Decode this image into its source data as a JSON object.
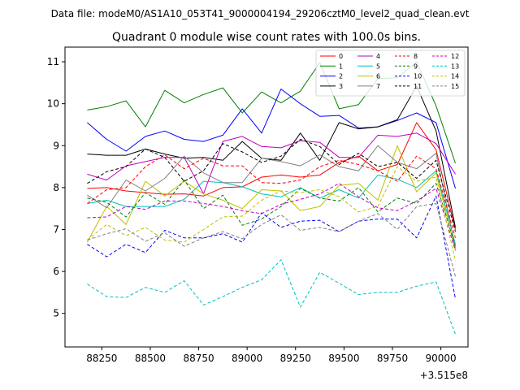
{
  "figure": {
    "suptitle": "Data file: modeM0/AS1A10_053T41_9000004194_29206cztM0_level2_quad_clean.evt",
    "title": "Quadrant 0 module wise count rates with 100.0s bins.",
    "offset_text": "+3.515e8"
  },
  "chart_data": {
    "type": "line",
    "title": "Quadrant 0 module wise count rates with 100.0s bins.",
    "xlabel": "",
    "ylabel": "",
    "x_offset": 351500000,
    "x": [
      88175,
      88275,
      88375,
      88475,
      88575,
      88675,
      88775,
      88875,
      88975,
      89075,
      89175,
      89275,
      89375,
      89475,
      89575,
      89675,
      89775,
      89875,
      89975,
      90075
    ],
    "xlim": [
      88060,
      90140
    ],
    "ylim": [
      4.2,
      11.35
    ],
    "x_ticks": [
      88250,
      88500,
      88750,
      89000,
      89250,
      89500,
      89750,
      90000
    ],
    "y_ticks": [
      5,
      6,
      7,
      8,
      9,
      10,
      11
    ],
    "grid": false,
    "legend_position": "upper-right",
    "legend_columns": 4,
    "series": [
      {
        "name": "0",
        "color": "#ff0000",
        "dash": "solid",
        "values": [
          7.98,
          8.0,
          7.92,
          7.88,
          7.84,
          7.85,
          7.8,
          8.0,
          8.02,
          8.25,
          8.3,
          8.25,
          8.3,
          8.6,
          8.75,
          8.4,
          8.55,
          9.55,
          8.9,
          7.0
        ]
      },
      {
        "name": "1",
        "color": "#008000",
        "dash": "solid",
        "values": [
          9.85,
          9.93,
          10.07,
          9.45,
          10.32,
          10.02,
          10.22,
          10.38,
          9.78,
          10.28,
          10.02,
          10.3,
          10.98,
          9.88,
          9.98,
          10.6,
          10.62,
          11.0,
          9.95,
          8.58
        ]
      },
      {
        "name": "2",
        "color": "#0000ff",
        "dash": "solid",
        "values": [
          9.55,
          9.15,
          8.87,
          9.22,
          9.35,
          9.15,
          9.1,
          9.25,
          9.88,
          9.3,
          10.35,
          10.0,
          9.7,
          9.72,
          9.42,
          9.45,
          9.6,
          9.78,
          9.55,
          7.98
        ]
      },
      {
        "name": "3",
        "color": "#000000",
        "dash": "solid",
        "values": [
          8.8,
          8.77,
          8.77,
          8.92,
          8.8,
          8.7,
          8.72,
          8.65,
          9.1,
          8.7,
          8.65,
          9.3,
          8.65,
          9.55,
          9.4,
          9.45,
          9.62,
          10.42,
          9.35,
          7.05
        ]
      },
      {
        "name": "4",
        "color": "#bf00bf",
        "dash": "solid",
        "values": [
          8.32,
          8.18,
          8.52,
          8.62,
          8.72,
          8.72,
          7.85,
          9.1,
          9.22,
          8.98,
          8.95,
          9.12,
          9.08,
          8.72,
          8.72,
          9.25,
          9.22,
          9.3,
          9.05,
          8.32
        ]
      },
      {
        "name": "5",
        "color": "#00bfbf",
        "dash": "solid",
        "values": [
          7.62,
          7.7,
          7.55,
          7.55,
          7.55,
          7.72,
          8.15,
          8.12,
          8.02,
          7.85,
          7.78,
          8.0,
          7.75,
          7.95,
          7.75,
          8.3,
          8.2,
          8.0,
          8.4,
          6.65
        ]
      },
      {
        "name": "6",
        "color": "#bfbf00",
        "dash": "solid",
        "values": [
          6.7,
          7.55,
          7.12,
          8.15,
          7.8,
          8.15,
          7.85,
          7.7,
          7.5,
          7.95,
          7.92,
          7.45,
          7.55,
          8.05,
          8.1,
          7.7,
          9.0,
          7.9,
          8.35,
          6.5
        ]
      },
      {
        "name": "7",
        "color": "#808080",
        "dash": "solid",
        "values": [
          7.82,
          7.52,
          8.18,
          7.92,
          8.22,
          8.75,
          8.35,
          8.12,
          8.12,
          8.7,
          8.62,
          8.52,
          8.78,
          8.5,
          8.4,
          9.0,
          8.6,
          8.45,
          8.82,
          6.55
        ]
      },
      {
        "name": "8",
        "color": "#ff0000",
        "dash": "dashed",
        "values": [
          7.62,
          7.95,
          8.0,
          8.5,
          8.78,
          8.45,
          8.7,
          8.52,
          8.52,
          8.12,
          8.1,
          8.18,
          8.5,
          8.65,
          8.55,
          8.4,
          8.15,
          8.75,
          8.45,
          6.8
        ]
      },
      {
        "name": "9",
        "color": "#008000",
        "dash": "dashed",
        "values": [
          7.75,
          7.65,
          7.3,
          7.88,
          7.6,
          8.18,
          7.5,
          7.82,
          7.1,
          7.25,
          7.55,
          7.98,
          7.75,
          7.68,
          8.0,
          7.42,
          7.75,
          7.62,
          8.1,
          6.6
        ]
      },
      {
        "name": "10",
        "color": "#0000ff",
        "dash": "dashed",
        "values": [
          6.65,
          6.35,
          6.65,
          6.45,
          6.98,
          6.8,
          6.8,
          6.9,
          6.7,
          7.4,
          7.05,
          7.2,
          7.22,
          6.95,
          7.2,
          7.25,
          7.25,
          6.8,
          7.8,
          5.35
        ]
      },
      {
        "name": "11",
        "color": "#000000",
        "dash": "dashed",
        "values": [
          8.1,
          8.38,
          8.5,
          8.92,
          8.72,
          8.15,
          8.4,
          9.05,
          8.85,
          8.6,
          8.75,
          9.15,
          8.98,
          8.55,
          8.82,
          8.5,
          8.6,
          8.22,
          8.65,
          6.95
        ]
      },
      {
        "name": "12",
        "color": "#bf00bf",
        "dash": "dashed",
        "values": [
          7.28,
          7.3,
          7.55,
          7.48,
          7.68,
          7.68,
          7.62,
          7.55,
          7.45,
          7.38,
          7.6,
          7.72,
          7.85,
          8.1,
          7.78,
          7.52,
          7.45,
          7.68,
          7.98,
          6.5
        ]
      },
      {
        "name": "13",
        "color": "#00bfbf",
        "dash": "dashed",
        "values": [
          5.7,
          5.4,
          5.38,
          5.62,
          5.5,
          5.78,
          5.2,
          5.4,
          5.62,
          5.8,
          6.28,
          5.15,
          5.98,
          5.72,
          5.45,
          5.5,
          5.5,
          5.65,
          5.75,
          4.5
        ]
      },
      {
        "name": "14",
        "color": "#bfbf00",
        "dash": "dashed",
        "values": [
          6.75,
          7.12,
          6.85,
          7.05,
          6.75,
          6.7,
          7.0,
          7.3,
          7.32,
          7.7,
          7.92,
          7.88,
          7.95,
          7.78,
          7.42,
          7.55,
          8.5,
          8.15,
          8.25,
          6.25
        ]
      },
      {
        "name": "15",
        "color": "#808080",
        "dash": "dashed",
        "values": [
          6.75,
          6.9,
          7.02,
          6.72,
          6.92,
          6.6,
          6.8,
          6.95,
          6.78,
          7.12,
          7.35,
          6.98,
          7.05,
          6.95,
          7.2,
          7.38,
          7.0,
          7.55,
          7.62,
          5.88
        ]
      }
    ]
  }
}
